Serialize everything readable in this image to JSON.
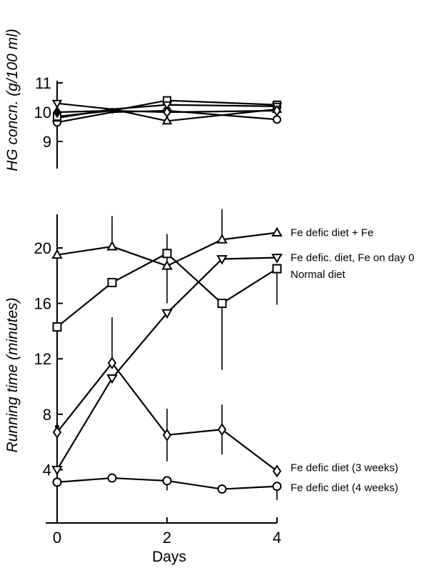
{
  "chart_data": [
    {
      "type": "line",
      "ylabel": "HG concn. (g/100 ml)",
      "ylim": [
        8,
        11
      ],
      "yticks": [
        "9",
        "10",
        "11"
      ],
      "x": [
        0,
        1,
        2,
        3,
        4
      ],
      "series": [
        {
          "marker": "circle",
          "values": [
            9.65,
            10.0,
            10.05,
            null,
            9.75
          ]
        },
        {
          "marker": "triangle-up",
          "values": [
            9.8,
            10.1,
            9.7,
            null,
            10.1
          ]
        },
        {
          "marker": "square",
          "values": [
            9.85,
            10.05,
            10.4,
            null,
            10.25
          ]
        },
        {
          "marker": "triangle-down",
          "values": [
            10.3,
            10.1,
            10.25,
            null,
            10.2
          ]
        },
        {
          "marker": "diamond",
          "values": [
            10.0,
            10.05,
            10.0,
            null,
            10.05
          ]
        }
      ]
    },
    {
      "type": "line",
      "xlabel": "Days",
      "ylabel": "Running time (minutes)",
      "xlim": [
        0,
        4
      ],
      "ylim": [
        0,
        22
      ],
      "xticks": [
        "0",
        "2",
        "4"
      ],
      "yticks": [
        "4",
        "8",
        "12",
        "16",
        "20"
      ],
      "series": [
        {
          "name": "Fe defic diet + Fe",
          "marker": "triangle-up",
          "x": [
            0,
            1,
            2,
            3,
            4
          ],
          "values": [
            19.5,
            20.1,
            18.7,
            20.6,
            21.1
          ],
          "err_up": [
            0,
            2.2,
            2.3,
            2.2,
            0
          ],
          "err_down": [
            0,
            0,
            2.7,
            0,
            0
          ]
        },
        {
          "name": "Fe defic. diet, Fe on day 0",
          "marker": "triangle-down",
          "x": [
            0,
            1,
            2,
            3,
            4
          ],
          "values": [
            4.0,
            10.6,
            15.3,
            19.2,
            19.3
          ],
          "err_up": [
            0,
            0,
            0,
            0,
            0
          ],
          "err_down": [
            0,
            0,
            0,
            0,
            0
          ]
        },
        {
          "name": "Normal diet",
          "marker": "square",
          "x": [
            0,
            1,
            2,
            3,
            4
          ],
          "values": [
            14.3,
            17.5,
            19.6,
            16.0,
            18.5
          ],
          "err_up": [
            0,
            0,
            0,
            0,
            0
          ],
          "err_down": [
            0,
            0,
            0,
            4.8,
            2.6
          ]
        },
        {
          "name": "Fe defic diet (3 weeks)",
          "marker": "diamond",
          "x": [
            0,
            1,
            2,
            3,
            4
          ],
          "values": [
            6.7,
            11.7,
            6.5,
            6.9,
            3.9
          ],
          "err_up": [
            0,
            3.3,
            1.9,
            1.8,
            0
          ],
          "err_down": [
            0,
            0,
            1.9,
            1.8,
            0
          ]
        },
        {
          "name": "Fe defic diet (4 weeks)",
          "marker": "circle",
          "x": [
            0,
            1,
            2,
            3,
            4
          ],
          "values": [
            3.1,
            3.4,
            3.2,
            2.6,
            2.8
          ],
          "err_up": [
            0,
            0,
            0,
            0,
            0
          ],
          "err_down": [
            0,
            0,
            0.7,
            0,
            1.0
          ]
        }
      ]
    }
  ]
}
